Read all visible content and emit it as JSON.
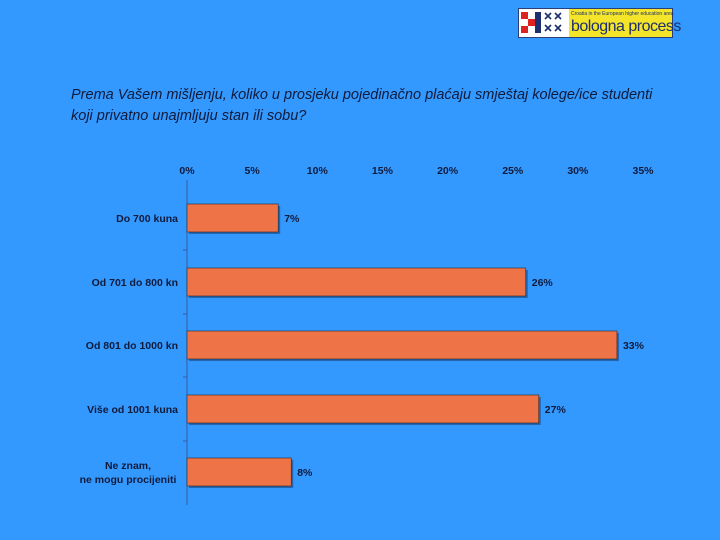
{
  "logo": {
    "small_text": "Croatia in the European higher education area",
    "text": "bologna process"
  },
  "question": "Prema Vašem mišljenju, koliko u prosjeku pojedinačno plaćaju smještaj kolege/ice studenti koji privatno unajmljuju stan ili sobu?",
  "colors": {
    "background": "#3399ff",
    "bar": "#ee7346",
    "text": "#101a3a"
  },
  "chart_data": {
    "type": "bar",
    "orientation": "horizontal",
    "categories": [
      "Do 700 kuna",
      "Od 701 do 800 kn",
      "Od 801 do 1000 kn",
      "Više od 1001 kuna",
      "Ne znam, ne mogu procijeniti"
    ],
    "values": [
      7,
      26,
      33,
      27,
      8
    ],
    "value_labels": [
      "7%",
      "26%",
      "33%",
      "27%",
      "8%"
    ],
    "xlim": [
      0,
      35
    ],
    "xticks": [
      "0%",
      "5%",
      "10%",
      "15%",
      "20%",
      "25%",
      "30%",
      "35%"
    ],
    "axis_position": "top",
    "grid": false
  }
}
